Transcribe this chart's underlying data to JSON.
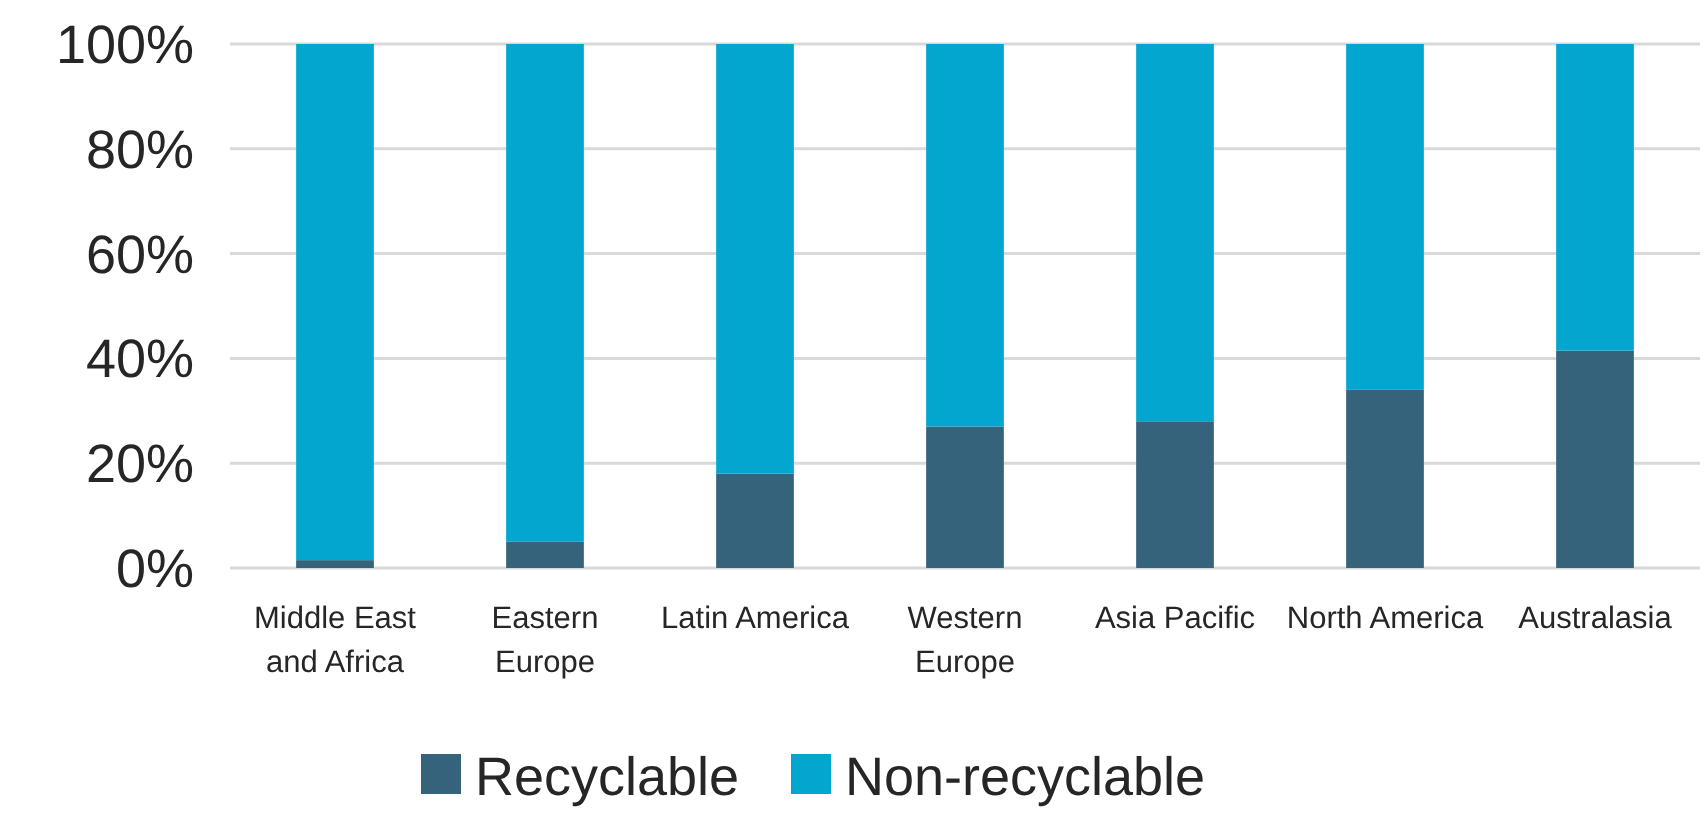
{
  "chart_data": {
    "type": "bar",
    "stacked": true,
    "categories": [
      "Middle East and Africa",
      "Eastern Europe",
      "Latin America",
      "Western Europe",
      "Asia Pacific",
      "North America",
      "Australasia"
    ],
    "series": [
      {
        "name": "Recyclable",
        "color": "#35637c",
        "values": [
          1.5,
          5,
          18,
          27,
          28,
          34,
          41.5
        ]
      },
      {
        "name": "Non-recyclable",
        "color": "#03a6cf",
        "values": [
          98.5,
          95,
          82,
          73,
          72,
          66,
          58.5
        ]
      }
    ],
    "ylim": [
      0,
      100
    ],
    "yticks": [
      {
        "value": 0,
        "label": "0%"
      },
      {
        "value": 20,
        "label": "20%"
      },
      {
        "value": 40,
        "label": "40%"
      },
      {
        "value": 60,
        "label": "60%"
      },
      {
        "value": 80,
        "label": "80%"
      },
      {
        "value": 100,
        "label": "100%"
      }
    ],
    "grid": "y",
    "legend": "bottom"
  }
}
